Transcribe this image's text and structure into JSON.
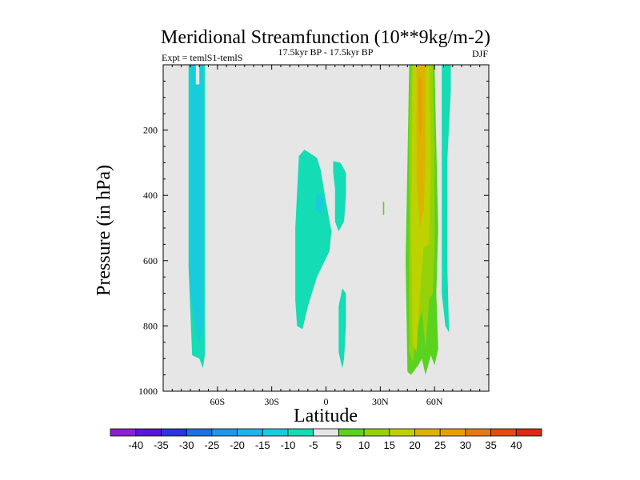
{
  "chart_data": {
    "type": "heatmap",
    "subtype": "filled-contour",
    "title": "Meridional Streamfunction (10**9kg/m-2)",
    "left_label": "Expt = temlS1-temlS",
    "center_label": "17.5kyr BP - 17.5kyr BP",
    "right_label": "DJF",
    "xlabel": "Latitude",
    "ylabel": "Pressure (in hPa)",
    "xlim": [
      -90,
      90
    ],
    "ylim": [
      1000,
      0
    ],
    "x_ticks": [
      {
        "value": -60,
        "label": "60S"
      },
      {
        "value": -30,
        "label": "30S"
      },
      {
        "value": 0,
        "label": "0"
      },
      {
        "value": 30,
        "label": "30N"
      },
      {
        "value": 60,
        "label": "60N"
      }
    ],
    "y_ticks": [
      {
        "value": 200,
        "label": "200"
      },
      {
        "value": 400,
        "label": "400"
      },
      {
        "value": 600,
        "label": "600"
      },
      {
        "value": 800,
        "label": "800"
      },
      {
        "value": 1000,
        "label": "1000"
      }
    ],
    "background_color": "#e6e6e6",
    "colorbar": {
      "levels": [
        -40,
        -35,
        -30,
        -25,
        -20,
        -15,
        -10,
        -5,
        5,
        10,
        15,
        20,
        25,
        30,
        35,
        40
      ],
      "labels": [
        "-40",
        "-35",
        "-30",
        "-25",
        "-20",
        "-15",
        "-10",
        "-5",
        "5",
        "10",
        "15",
        "20",
        "25",
        "30",
        "35",
        "40"
      ],
      "colors": [
        "#8c1ed6",
        "#5a14dc",
        "#2a36e0",
        "#1c6ee6",
        "#1e96ea",
        "#1eb4ea",
        "#18ccdc",
        "#14dcb4",
        "#e6e6e6",
        "#5ad21e",
        "#96d20a",
        "#bed200",
        "#dcb400",
        "#e6a000",
        "#e67814",
        "#e64a14",
        "#dc2814"
      ]
    },
    "regions": [
      {
        "name": "south-polar-band",
        "value": -7,
        "color": "#14dcb4",
        "points": [
          [
            -76,
            0
          ],
          [
            -72,
            0
          ],
          [
            -72,
            70
          ],
          [
            -69,
            70
          ],
          [
            -69,
            0
          ],
          [
            -67,
            0
          ],
          [
            -67,
            890
          ],
          [
            -68,
            930
          ],
          [
            -70,
            900
          ],
          [
            -74,
            890
          ],
          [
            -76,
            620
          ]
        ]
      },
      {
        "name": "south-polar-band-core",
        "value": -12,
        "color": "#18ccdc",
        "points": [
          [
            -75,
            0
          ],
          [
            -72,
            0
          ],
          [
            -72,
            60
          ],
          [
            -70,
            60
          ],
          [
            -70,
            0
          ],
          [
            -68,
            0
          ],
          [
            -68,
            800
          ],
          [
            -70,
            850
          ],
          [
            -72,
            800
          ],
          [
            -75,
            700
          ]
        ]
      },
      {
        "name": "equatorial-cell",
        "value": -7,
        "color": "#14dcb4",
        "points": [
          [
            -12,
            260
          ],
          [
            -9,
            270
          ],
          [
            -5,
            285
          ],
          [
            -3,
            320
          ],
          [
            0,
            420
          ],
          [
            3,
            510
          ],
          [
            2,
            570
          ],
          [
            -5,
            650
          ],
          [
            -10,
            740
          ],
          [
            -13,
            810
          ],
          [
            -16,
            800
          ],
          [
            -17,
            720
          ],
          [
            -17,
            500
          ],
          [
            -15,
            280
          ]
        ]
      },
      {
        "name": "equatorial-lobe",
        "value": -7,
        "color": "#14dcb4",
        "points": [
          [
            4,
            295
          ],
          [
            8,
            300
          ],
          [
            11,
            330
          ],
          [
            11,
            400
          ],
          [
            10,
            480
          ],
          [
            7,
            510
          ],
          [
            5,
            480
          ],
          [
            5,
            380
          ],
          [
            4,
            330
          ]
        ]
      },
      {
        "name": "equatorial-core",
        "value": -12,
        "color": "#18ccdc",
        "points": [
          [
            -5,
            395
          ],
          [
            -2,
            400
          ],
          [
            -1,
            430
          ],
          [
            -3,
            460
          ],
          [
            -6,
            440
          ]
        ]
      },
      {
        "name": "equatorial-tail",
        "value": -7,
        "color": "#14dcb4",
        "points": [
          [
            9,
            685
          ],
          [
            11,
            700
          ],
          [
            11,
            800
          ],
          [
            10,
            900
          ],
          [
            9,
            930
          ],
          [
            7,
            880
          ],
          [
            7,
            740
          ]
        ]
      },
      {
        "name": "north-mid-band",
        "value": 7,
        "color": "#5ad21e",
        "points": [
          [
            46,
            0
          ],
          [
            60,
            0
          ],
          [
            61,
            250
          ],
          [
            62,
            500
          ],
          [
            61,
            700
          ],
          [
            62,
            870
          ],
          [
            60,
            920
          ],
          [
            58,
            890
          ],
          [
            55,
            950
          ],
          [
            53,
            900
          ],
          [
            51,
            920
          ],
          [
            47,
            950
          ],
          [
            45,
            940
          ],
          [
            44,
            600
          ],
          [
            45,
            300
          ]
        ]
      },
      {
        "name": "north-mid-band-lime",
        "value": 12,
        "color": "#96d20a",
        "points": [
          [
            47,
            0
          ],
          [
            59,
            0
          ],
          [
            60,
            250
          ],
          [
            60,
            550
          ],
          [
            59,
            700
          ],
          [
            57,
            720
          ],
          [
            55,
            870
          ],
          [
            53,
            750
          ],
          [
            51,
            800
          ],
          [
            48,
            910
          ],
          [
            46,
            880
          ],
          [
            46,
            500
          ],
          [
            46,
            200
          ]
        ]
      },
      {
        "name": "north-mid-band-yellow",
        "value": 17,
        "color": "#bed200",
        "points": [
          [
            48,
            0
          ],
          [
            57,
            0
          ],
          [
            58,
            300
          ],
          [
            57,
            550
          ],
          [
            54,
            560
          ],
          [
            52,
            700
          ],
          [
            50,
            880
          ],
          [
            48,
            850
          ],
          [
            47,
            500
          ]
        ]
      },
      {
        "name": "north-mid-band-orange",
        "value": 22,
        "color": "#dcb400",
        "points": [
          [
            50,
            0
          ],
          [
            55,
            0
          ],
          [
            55,
            280
          ],
          [
            54,
            450
          ],
          [
            52,
            500
          ],
          [
            50,
            350
          ]
        ]
      },
      {
        "name": "north-mid-band-core",
        "value": 27,
        "color": "#e6a000",
        "points": [
          [
            51,
            40
          ],
          [
            53,
            40
          ],
          [
            53,
            200
          ],
          [
            52,
            230
          ],
          [
            51,
            150
          ]
        ]
      },
      {
        "name": "north-polar-band",
        "value": -7,
        "color": "#14dcb4",
        "points": [
          [
            64,
            0
          ],
          [
            69,
            0
          ],
          [
            69,
            80
          ],
          [
            67,
            300
          ],
          [
            67,
            600
          ],
          [
            68,
            820
          ],
          [
            66,
            800
          ],
          [
            64,
            700
          ],
          [
            64,
            200
          ]
        ]
      },
      {
        "name": "north-speck",
        "value": 7,
        "color": "#5ad21e",
        "points": [
          [
            31.5,
            420
          ],
          [
            32.2,
            420
          ],
          [
            32.2,
            460
          ],
          [
            31.5,
            460
          ]
        ]
      }
    ]
  }
}
